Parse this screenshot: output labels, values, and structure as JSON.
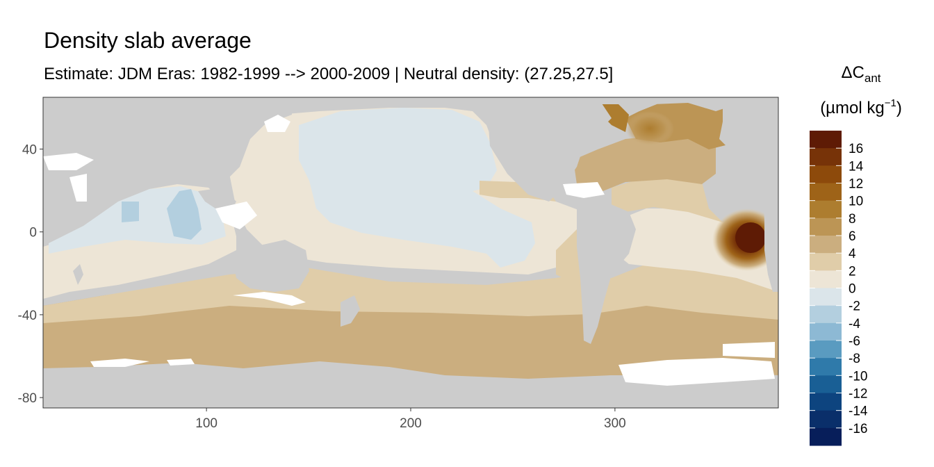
{
  "title": "Density slab average",
  "subtitle": "Estimate: JDM Eras: 1982-1999 --> 2000-2009 | Neutral density: (27.25,27.5]",
  "chart_data": {
    "type": "heatmap",
    "description_of_content": "",
    "x_ticks": [
      "100",
      "200",
      "300"
    ],
    "x_tick_values": [
      100,
      200,
      300
    ],
    "y_ticks": [
      "40",
      "0",
      "-40",
      "-80"
    ],
    "y_tick_values": [
      40,
      0,
      -40,
      -80
    ],
    "xlim": [
      20,
      380
    ],
    "ylim": [
      -85,
      65
    ],
    "legend": {
      "title_main": "ΔC",
      "title_sub": "ant",
      "unit_main": "(µmol kg",
      "unit_sup": "−1",
      "unit_close": ")",
      "labels": [
        "16",
        "14",
        "12",
        "10",
        "8",
        "6",
        "4",
        "2",
        "0",
        "-2",
        "-4",
        "-6",
        "-8",
        "-10",
        "-12",
        "-14",
        "-16"
      ],
      "colors": [
        "#5e1b05",
        "#773308",
        "#8d4a0b",
        "#9e6318",
        "#ad7d2f",
        "#bc9555",
        "#cbae7f",
        "#e0cda9",
        "#ede5d6",
        "#dbe5ea",
        "#b3cfdf",
        "#8db9d4",
        "#5a9bc0",
        "#2f7aaa",
        "#195f95",
        "#0d447f",
        "#0a2f6a",
        "#071e5a"
      ]
    },
    "land_color": "#cccccc",
    "nodata_color": "#ffffff"
  }
}
